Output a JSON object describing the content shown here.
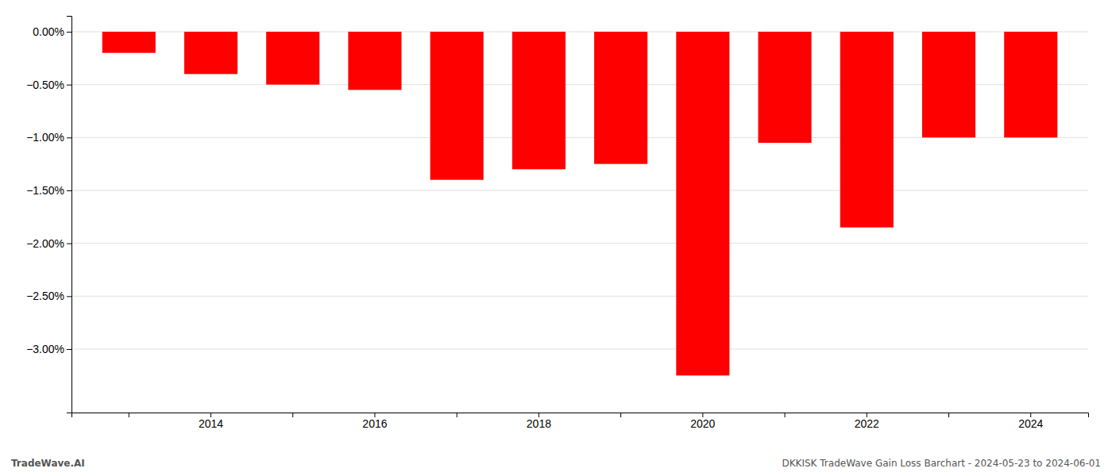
{
  "chart_data": {
    "type": "bar",
    "categories": [
      null,
      "2014",
      null,
      "2016",
      null,
      "2018",
      null,
      "2020",
      null,
      "2022",
      null,
      "2024"
    ],
    "values": [
      -0.2,
      -0.4,
      -0.5,
      -0.55,
      -1.4,
      -1.3,
      -1.25,
      -3.25,
      -1.05,
      -1.85,
      -1.0,
      -1.0
    ],
    "color": "#ff0000",
    "ylim": [
      -3.6,
      0.15
    ],
    "yticks": [
      {
        "value": 0.0,
        "label": "0.00%"
      },
      {
        "value": -0.5,
        "label": "−0.50%"
      },
      {
        "value": -1.0,
        "label": "−1.00%"
      },
      {
        "value": -1.5,
        "label": "−1.50%"
      },
      {
        "value": -2.0,
        "label": "−2.00%"
      },
      {
        "value": -2.5,
        "label": "−2.50%"
      },
      {
        "value": -3.0,
        "label": "−3.00%"
      }
    ],
    "grid": true,
    "annotations": [
      "TradeWave.AI",
      "DKKISK TradeWave Gain Loss Barchart - 2024-05-23 to 2024-06-01"
    ]
  }
}
